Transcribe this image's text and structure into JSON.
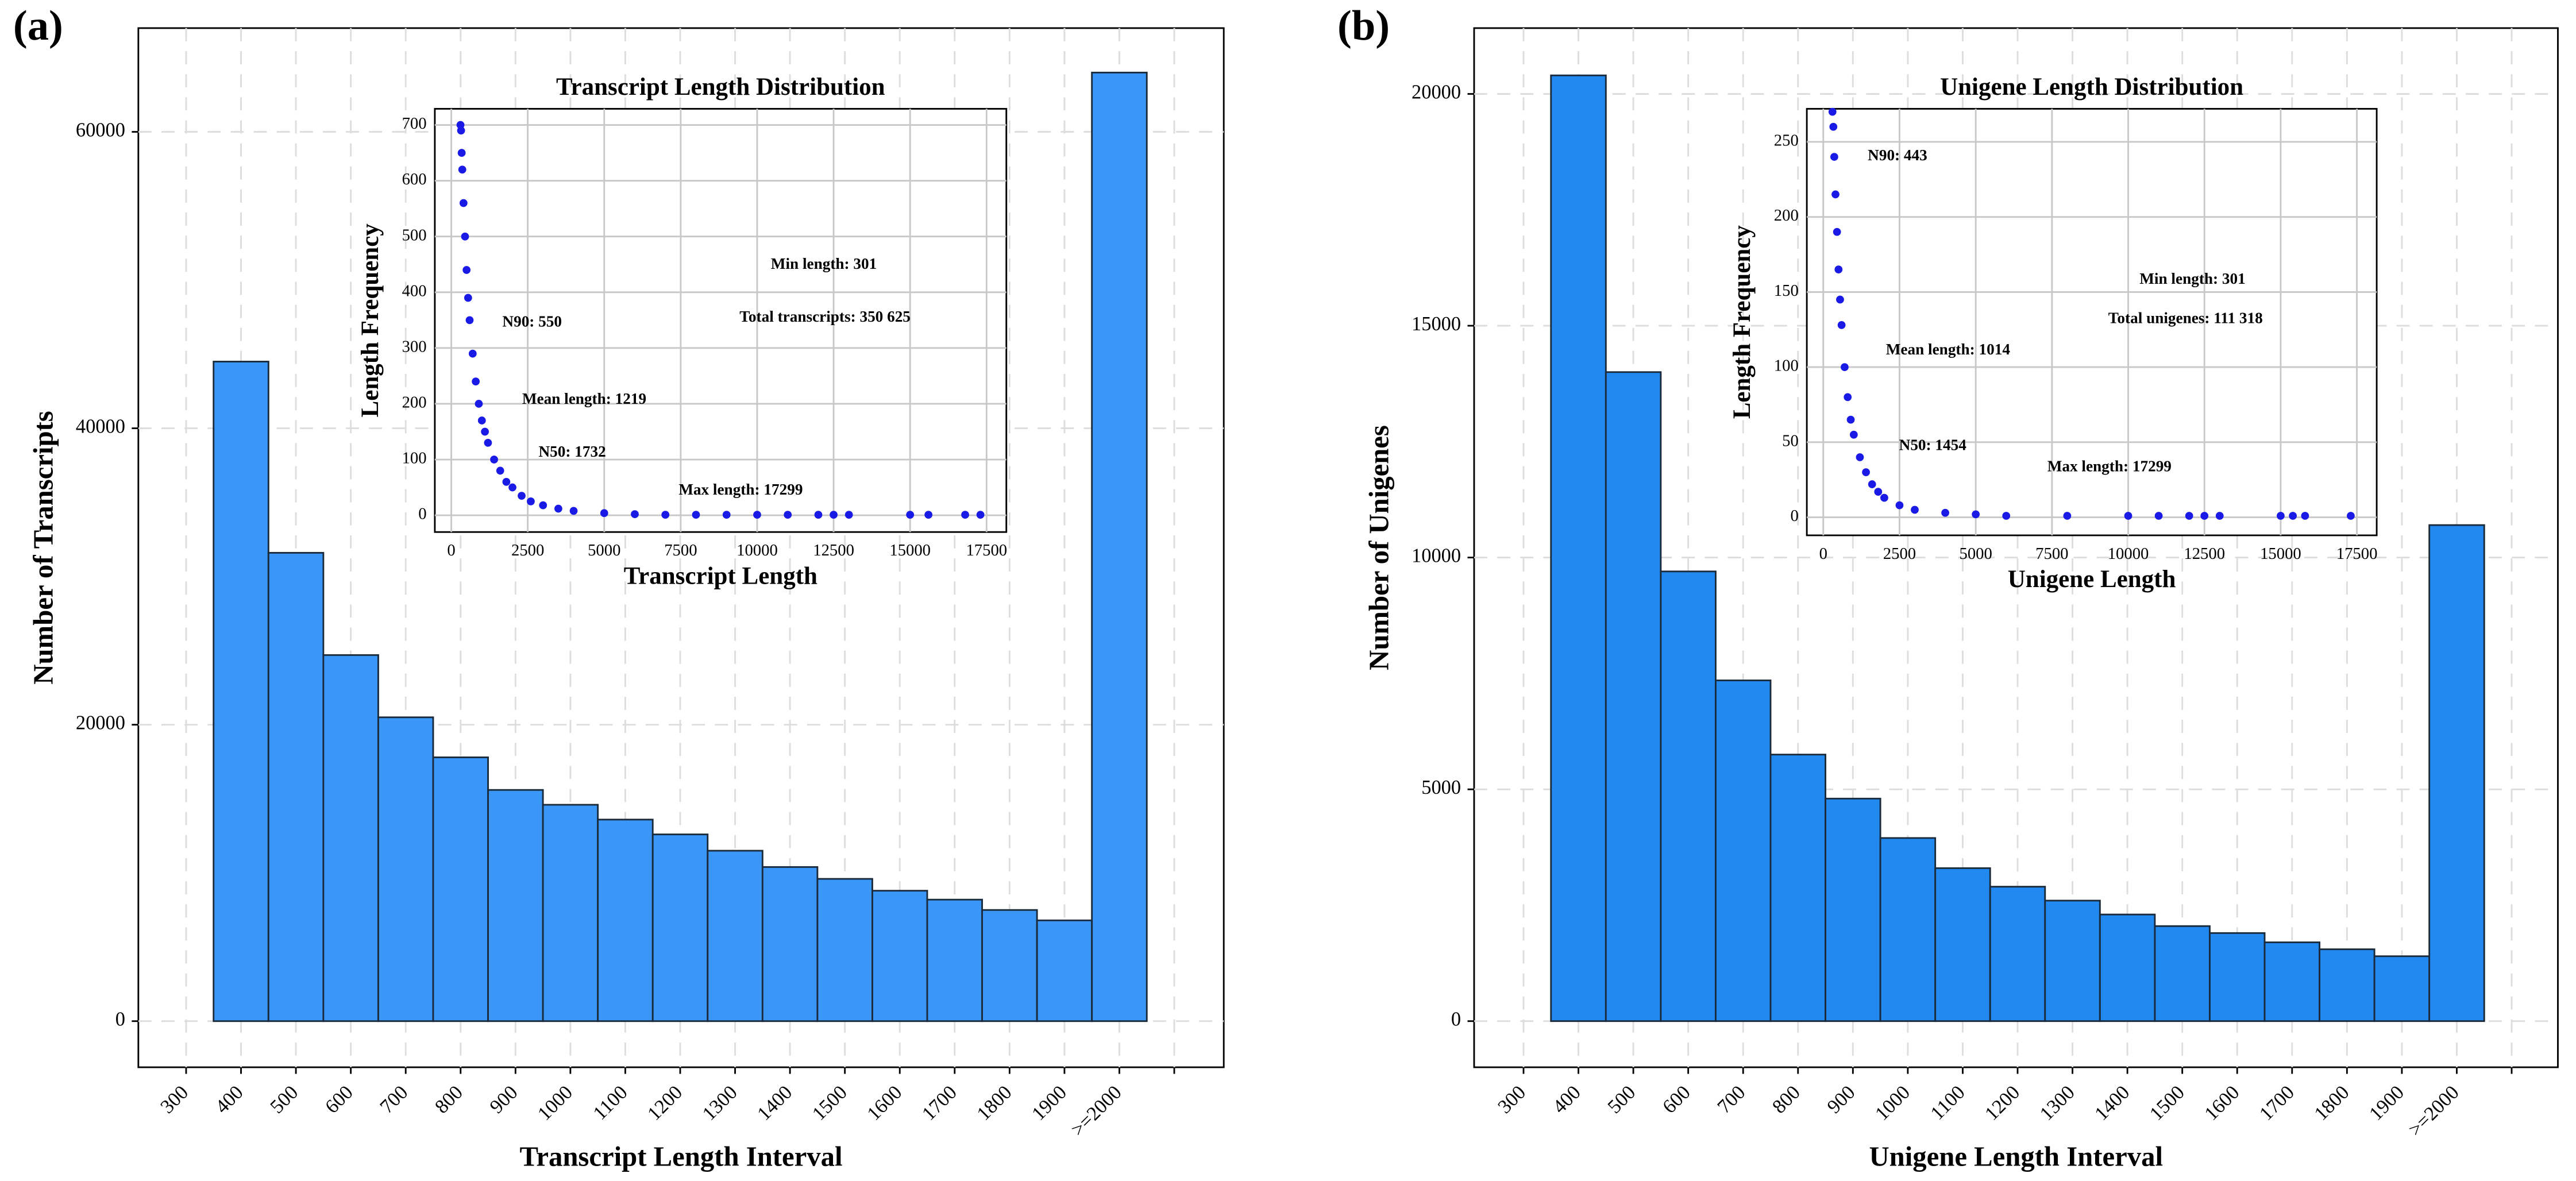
{
  "chart_data": [
    {
      "type": "bar",
      "panel_label": "(a)",
      "xlabel": "Transcript Length Interval",
      "ylabel": "Number of Transcripts",
      "categories": [
        "300",
        "400",
        "500",
        "600",
        "700",
        "800",
        "900",
        "1000",
        "1100",
        "1200",
        "1300",
        "1400",
        "1500",
        "1600",
        "1700",
        "1800",
        "1900",
        ">=2000"
      ],
      "values": [
        null,
        44500,
        31600,
        24700,
        20500,
        17800,
        15600,
        14600,
        13600,
        12600,
        11500,
        10400,
        9600,
        8800,
        8200,
        7500,
        6800,
        64000
      ],
      "color": "#3a97f7",
      "ylim": [
        -3111,
        67000
      ],
      "yticks": [
        0,
        20000,
        40000,
        60000
      ],
      "grid": true,
      "inset": {
        "type": "scatter",
        "title": "Transcript Length Distribution",
        "xlabel": "Transcript  Length",
        "ylabel": "Length  Frequency",
        "x": [
          301,
          320,
          340,
          360,
          400,
          450,
          500,
          550,
          600,
          700,
          800,
          900,
          1000,
          1100,
          1200,
          1400,
          1600,
          1800,
          2000,
          2300,
          2600,
          3000,
          3500,
          4000,
          5000,
          6000,
          7000,
          8000,
          9000,
          10000,
          11000,
          12000,
          12500,
          13000,
          15000,
          15600,
          16800,
          17299
        ],
        "y": [
          700,
          690,
          650,
          620,
          560,
          500,
          440,
          390,
          350,
          290,
          240,
          200,
          170,
          150,
          130,
          100,
          80,
          60,
          50,
          35,
          25,
          18,
          12,
          8,
          4,
          2,
          1,
          1,
          1,
          1,
          1,
          1,
          1,
          1,
          1,
          1,
          1,
          1
        ],
        "color": "#1a1ae6",
        "xlim": [
          -538,
          18147
        ],
        "xticks": [
          0,
          2500,
          5000,
          7500,
          10000,
          12500,
          15000,
          17500
        ],
        "ylim": [
          -30,
          729
        ],
        "yticks": [
          0,
          100,
          200,
          300,
          400,
          500,
          600,
          700
        ],
        "grid": true,
        "annotations": [
          "Min length: 301",
          "Total transcripts: 350 625",
          "N90: 550",
          "Mean length: 1219",
          "N50: 1732",
          "Max length: 17299"
        ]
      }
    },
    {
      "type": "bar",
      "panel_label": "(b)",
      "xlabel": "Unigene Length Interval",
      "ylabel": "Number of Unigenes",
      "categories": [
        "300",
        "400",
        "500",
        "600",
        "700",
        "800",
        "900",
        "1000",
        "1100",
        "1200",
        "1300",
        "1400",
        "1500",
        "1600",
        "1700",
        "1800",
        "1900",
        ">=2000"
      ],
      "values": [
        null,
        20400,
        14000,
        9700,
        7350,
        5750,
        4800,
        3950,
        3300,
        2900,
        2600,
        2300,
        2050,
        1900,
        1700,
        1550,
        1400,
        10700
      ],
      "color": "#2189f0",
      "ylim": [
        -995,
        21420
      ],
      "yticks": [
        0,
        5000,
        10000,
        15000,
        20000
      ],
      "grid": true,
      "inset": {
        "type": "scatter",
        "title": "Unigene Length Distribution",
        "xlabel": "Unigene  Length",
        "ylabel": "Length  Frequency",
        "x": [
          301,
          330,
          360,
          400,
          450,
          500,
          550,
          600,
          700,
          800,
          900,
          1000,
          1200,
          1400,
          1600,
          1800,
          2000,
          2500,
          3000,
          4000,
          5000,
          6000,
          8000,
          10000,
          11000,
          12000,
          12500,
          13000,
          15000,
          15400,
          15800,
          17299
        ],
        "y": [
          270,
          260,
          240,
          215,
          190,
          165,
          145,
          128,
          100,
          80,
          65,
          55,
          40,
          30,
          22,
          17,
          13,
          8,
          5,
          3,
          2,
          1,
          1,
          1,
          1,
          1,
          1,
          1,
          1,
          1,
          1,
          1
        ],
        "color": "#1a1ae6",
        "xlim": [
          -540,
          18150
        ],
        "xticks": [
          0,
          2500,
          5000,
          7500,
          10000,
          12500,
          15000,
          17500
        ],
        "ylim": [
          -12,
          272
        ],
        "yticks": [
          0,
          50,
          100,
          150,
          200,
          250
        ],
        "grid": true,
        "annotations": [
          "N90: 443",
          "Min length: 301",
          "Total unigenes: 111 318",
          "Mean length: 1014",
          "N50: 1454",
          "Max length: 17299"
        ]
      }
    }
  ]
}
